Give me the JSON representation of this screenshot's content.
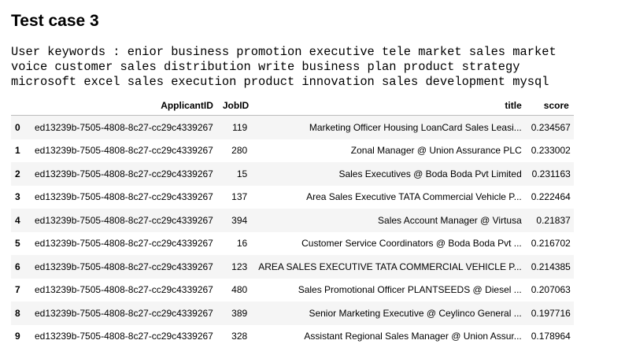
{
  "heading": "Test case 3",
  "keywords": "User keywords : enior business promotion executive tele market sales market\nvoice customer sales distribution write business plan product strategy\nmicrosoft excel sales execution product innovation sales development mysql",
  "table": {
    "columns": [
      "",
      "ApplicantID",
      "JobID",
      "title",
      "score"
    ],
    "rows": [
      {
        "index": "0",
        "applicant_id": "ed13239b-7505-4808-8c27-cc29c4339267",
        "job_id": "119",
        "title": "Marketing Officer Housing LoanCard Sales Leasi...",
        "score": "0.234567"
      },
      {
        "index": "1",
        "applicant_id": "ed13239b-7505-4808-8c27-cc29c4339267",
        "job_id": "280",
        "title": "Zonal Manager @ Union Assurance PLC",
        "score": "0.233002"
      },
      {
        "index": "2",
        "applicant_id": "ed13239b-7505-4808-8c27-cc29c4339267",
        "job_id": "15",
        "title": "Sales Executives @ Boda Boda Pvt Limited",
        "score": "0.231163"
      },
      {
        "index": "3",
        "applicant_id": "ed13239b-7505-4808-8c27-cc29c4339267",
        "job_id": "137",
        "title": "Area Sales Executive TATA Commercial Vehicle P...",
        "score": "0.222464"
      },
      {
        "index": "4",
        "applicant_id": "ed13239b-7505-4808-8c27-cc29c4339267",
        "job_id": "394",
        "title": "Sales Account Manager @ Virtusa",
        "score": "0.21837"
      },
      {
        "index": "5",
        "applicant_id": "ed13239b-7505-4808-8c27-cc29c4339267",
        "job_id": "16",
        "title": "Customer Service Coordinators @ Boda Boda Pvt ...",
        "score": "0.216702"
      },
      {
        "index": "6",
        "applicant_id": "ed13239b-7505-4808-8c27-cc29c4339267",
        "job_id": "123",
        "title": "AREA SALES EXECUTIVE TATA COMMERCIAL VEHICLE P...",
        "score": "0.214385"
      },
      {
        "index": "7",
        "applicant_id": "ed13239b-7505-4808-8c27-cc29c4339267",
        "job_id": "480",
        "title": "Sales Promotional Officer PLANTSEEDS @ Diesel ...",
        "score": "0.207063"
      },
      {
        "index": "8",
        "applicant_id": "ed13239b-7505-4808-8c27-cc29c4339267",
        "job_id": "389",
        "title": "Senior Marketing Executive @ Ceylinco General ...",
        "score": "0.197716"
      },
      {
        "index": "9",
        "applicant_id": "ed13239b-7505-4808-8c27-cc29c4339267",
        "job_id": "328",
        "title": "Assistant Regional Sales Manager @ Union Assur...",
        "score": "0.178964"
      }
    ]
  }
}
